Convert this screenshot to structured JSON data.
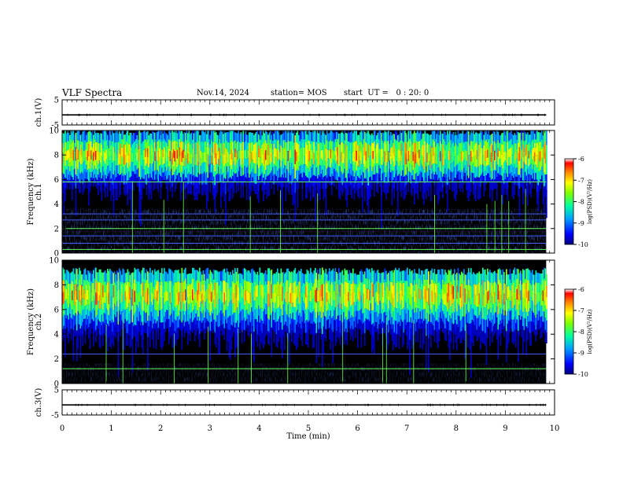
{
  "header": {
    "title": "VLF Spectra",
    "date": "Nov.14, 2024",
    "station": "station= MOS",
    "start_ut": "start  UT =   0 : 20: 0"
  },
  "chart_data": [
    {
      "type": "line",
      "name": "ch1-voltage",
      "ylabel": "ch.1(V)",
      "ylim": [
        -5,
        5
      ],
      "yticks": [
        "5",
        "-5"
      ],
      "x": [
        0,
        9.83
      ],
      "values": [
        -1,
        -1
      ]
    },
    {
      "type": "heatmap",
      "name": "ch1-spectrogram",
      "ylabel": "ch.1\nFrequency (kHz)",
      "ylim": [
        0,
        10
      ],
      "yticks": [
        "0",
        "2",
        "4",
        "6",
        "8",
        "10"
      ],
      "xlim": [
        0,
        10
      ],
      "data_extent_min": 9.83,
      "colorbar": {
        "label": "log(PSD)(V²/Hz)",
        "range": [
          -10,
          -6
        ],
        "ticks": [
          "-6",
          "-7",
          "-8",
          "-9",
          "-10"
        ]
      },
      "band_center_khz": 8.0,
      "band_min_khz": 6.0,
      "line_tones_khz": [
        0.3,
        0.8,
        1.4,
        2.0,
        2.7,
        3.2,
        5.8
      ]
    },
    {
      "type": "heatmap",
      "name": "ch2-spectrogram",
      "ylabel": "ch.2\nFrequency (kHz)",
      "ylim": [
        0,
        10
      ],
      "yticks": [
        "0",
        "2",
        "4",
        "6",
        "8",
        "10"
      ],
      "xlim": [
        0,
        10
      ],
      "data_extent_min": 9.83,
      "colorbar": {
        "label": "log(PSD)(V²/Hz)",
        "range": [
          -10,
          -6
        ],
        "ticks": [
          "-6",
          "-7",
          "-8",
          "-9",
          "-10"
        ]
      },
      "band_center_khz": 7.2,
      "band_min_khz": 4.5,
      "line_tones_khz": [
        1.2,
        2.4
      ]
    },
    {
      "type": "line",
      "name": "ch3-voltage",
      "ylabel": "ch.3(V)",
      "ylim": [
        -5,
        5
      ],
      "yticks": [
        "5",
        "-5"
      ],
      "x": [
        0,
        9.83
      ],
      "values": [
        -1,
        -1
      ]
    }
  ],
  "xaxis": {
    "label": "Time  (min)",
    "range": [
      0,
      10
    ],
    "ticks": [
      "0",
      "1",
      "2",
      "3",
      "4",
      "5",
      "6",
      "7",
      "8",
      "9",
      "10"
    ]
  }
}
